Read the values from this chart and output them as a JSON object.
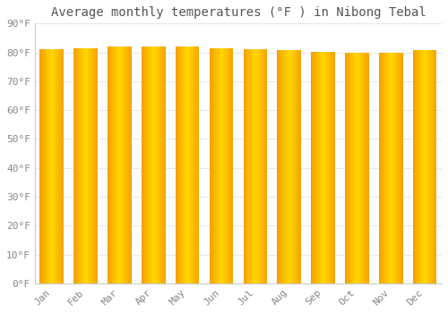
{
  "title": "Average monthly temperatures (°F ) in Nibong Tebal",
  "months": [
    "Jan",
    "Feb",
    "Mar",
    "Apr",
    "May",
    "Jun",
    "Jul",
    "Aug",
    "Sep",
    "Oct",
    "Nov",
    "Dec"
  ],
  "values": [
    81.0,
    81.5,
    82.0,
    82.1,
    82.0,
    81.5,
    81.0,
    80.8,
    80.3,
    80.0,
    80.0,
    80.8
  ],
  "ylim": [
    0,
    90
  ],
  "yticks": [
    0,
    10,
    20,
    30,
    40,
    50,
    60,
    70,
    80,
    90
  ],
  "ytick_labels": [
    "0°F",
    "10°F",
    "20°F",
    "30°F",
    "40°F",
    "50°F",
    "60°F",
    "70°F",
    "80°F",
    "90°F"
  ],
  "bar_color_center": "#FFD700",
  "bar_color_edge": "#F5A000",
  "bar_border_color": "#C87000",
  "background_color": "#FFFFFF",
  "grid_color": "#E8E8E8",
  "title_fontsize": 10,
  "tick_fontsize": 8,
  "title_color": "#555555",
  "tick_color": "#888888",
  "bar_width": 0.7
}
